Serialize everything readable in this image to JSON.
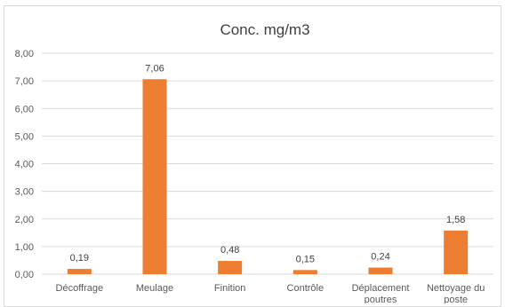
{
  "chart_data": {
    "type": "bar",
    "title": "Conc. mg/m3",
    "xlabel": "",
    "ylabel": "",
    "categories": [
      "Décoffrage",
      "Meulage",
      "Finition",
      "Contrôle",
      "Déplacement poutres",
      "Nettoyage du poste"
    ],
    "category_lines": [
      [
        "Décoffrage"
      ],
      [
        "Meulage"
      ],
      [
        "Finition"
      ],
      [
        "Contrôle"
      ],
      [
        "Déplacement",
        "poutres"
      ],
      [
        "Nettoyage du",
        "poste"
      ]
    ],
    "values": [
      0.19,
      7.06,
      0.48,
      0.15,
      0.24,
      1.58
    ],
    "data_labels": [
      "0,19",
      "7,06",
      "0,48",
      "0,15",
      "0,24",
      "1,58"
    ],
    "ylim": [
      0,
      8
    ],
    "yticks": [
      0,
      1,
      2,
      3,
      4,
      5,
      6,
      7,
      8
    ],
    "ytick_labels": [
      "0,00",
      "1,00",
      "2,00",
      "3,00",
      "4,00",
      "5,00",
      "6,00",
      "7,00",
      "8,00"
    ],
    "grid": true,
    "legend": "none",
    "bar_color": "#ED7D31",
    "grid_color": "#d9d9d9"
  }
}
